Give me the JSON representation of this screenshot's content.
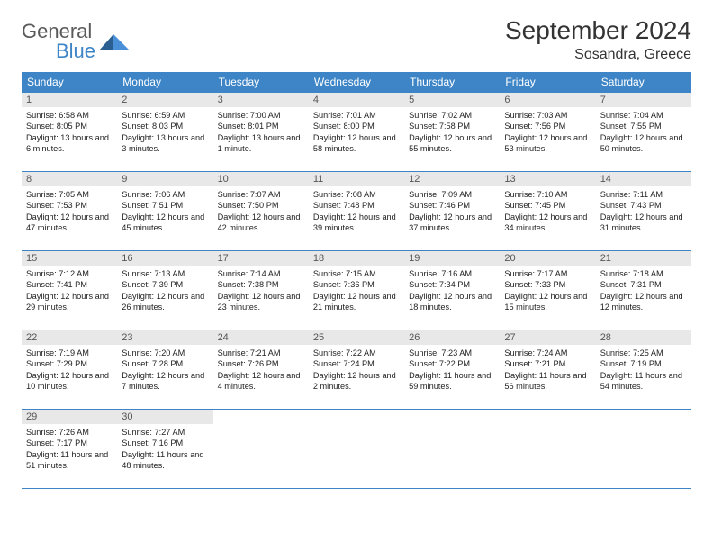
{
  "brand": {
    "general": "General",
    "blue": "Blue"
  },
  "header": {
    "month": "September 2024",
    "location": "Sosandra, Greece"
  },
  "colors": {
    "accent": "#3d85c6",
    "daynum_bg": "#e8e8e8",
    "text": "#222222",
    "bg": "#ffffff"
  },
  "weekdays": [
    "Sunday",
    "Monday",
    "Tuesday",
    "Wednesday",
    "Thursday",
    "Friday",
    "Saturday"
  ],
  "weeks": [
    [
      {
        "n": "1",
        "sr": "Sunrise: 6:58 AM",
        "ss": "Sunset: 8:05 PM",
        "dl": "Daylight: 13 hours and 6 minutes."
      },
      {
        "n": "2",
        "sr": "Sunrise: 6:59 AM",
        "ss": "Sunset: 8:03 PM",
        "dl": "Daylight: 13 hours and 3 minutes."
      },
      {
        "n": "3",
        "sr": "Sunrise: 7:00 AM",
        "ss": "Sunset: 8:01 PM",
        "dl": "Daylight: 13 hours and 1 minute."
      },
      {
        "n": "4",
        "sr": "Sunrise: 7:01 AM",
        "ss": "Sunset: 8:00 PM",
        "dl": "Daylight: 12 hours and 58 minutes."
      },
      {
        "n": "5",
        "sr": "Sunrise: 7:02 AM",
        "ss": "Sunset: 7:58 PM",
        "dl": "Daylight: 12 hours and 55 minutes."
      },
      {
        "n": "6",
        "sr": "Sunrise: 7:03 AM",
        "ss": "Sunset: 7:56 PM",
        "dl": "Daylight: 12 hours and 53 minutes."
      },
      {
        "n": "7",
        "sr": "Sunrise: 7:04 AM",
        "ss": "Sunset: 7:55 PM",
        "dl": "Daylight: 12 hours and 50 minutes."
      }
    ],
    [
      {
        "n": "8",
        "sr": "Sunrise: 7:05 AM",
        "ss": "Sunset: 7:53 PM",
        "dl": "Daylight: 12 hours and 47 minutes."
      },
      {
        "n": "9",
        "sr": "Sunrise: 7:06 AM",
        "ss": "Sunset: 7:51 PM",
        "dl": "Daylight: 12 hours and 45 minutes."
      },
      {
        "n": "10",
        "sr": "Sunrise: 7:07 AM",
        "ss": "Sunset: 7:50 PM",
        "dl": "Daylight: 12 hours and 42 minutes."
      },
      {
        "n": "11",
        "sr": "Sunrise: 7:08 AM",
        "ss": "Sunset: 7:48 PM",
        "dl": "Daylight: 12 hours and 39 minutes."
      },
      {
        "n": "12",
        "sr": "Sunrise: 7:09 AM",
        "ss": "Sunset: 7:46 PM",
        "dl": "Daylight: 12 hours and 37 minutes."
      },
      {
        "n": "13",
        "sr": "Sunrise: 7:10 AM",
        "ss": "Sunset: 7:45 PM",
        "dl": "Daylight: 12 hours and 34 minutes."
      },
      {
        "n": "14",
        "sr": "Sunrise: 7:11 AM",
        "ss": "Sunset: 7:43 PM",
        "dl": "Daylight: 12 hours and 31 minutes."
      }
    ],
    [
      {
        "n": "15",
        "sr": "Sunrise: 7:12 AM",
        "ss": "Sunset: 7:41 PM",
        "dl": "Daylight: 12 hours and 29 minutes."
      },
      {
        "n": "16",
        "sr": "Sunrise: 7:13 AM",
        "ss": "Sunset: 7:39 PM",
        "dl": "Daylight: 12 hours and 26 minutes."
      },
      {
        "n": "17",
        "sr": "Sunrise: 7:14 AM",
        "ss": "Sunset: 7:38 PM",
        "dl": "Daylight: 12 hours and 23 minutes."
      },
      {
        "n": "18",
        "sr": "Sunrise: 7:15 AM",
        "ss": "Sunset: 7:36 PM",
        "dl": "Daylight: 12 hours and 21 minutes."
      },
      {
        "n": "19",
        "sr": "Sunrise: 7:16 AM",
        "ss": "Sunset: 7:34 PM",
        "dl": "Daylight: 12 hours and 18 minutes."
      },
      {
        "n": "20",
        "sr": "Sunrise: 7:17 AM",
        "ss": "Sunset: 7:33 PM",
        "dl": "Daylight: 12 hours and 15 minutes."
      },
      {
        "n": "21",
        "sr": "Sunrise: 7:18 AM",
        "ss": "Sunset: 7:31 PM",
        "dl": "Daylight: 12 hours and 12 minutes."
      }
    ],
    [
      {
        "n": "22",
        "sr": "Sunrise: 7:19 AM",
        "ss": "Sunset: 7:29 PM",
        "dl": "Daylight: 12 hours and 10 minutes."
      },
      {
        "n": "23",
        "sr": "Sunrise: 7:20 AM",
        "ss": "Sunset: 7:28 PM",
        "dl": "Daylight: 12 hours and 7 minutes."
      },
      {
        "n": "24",
        "sr": "Sunrise: 7:21 AM",
        "ss": "Sunset: 7:26 PM",
        "dl": "Daylight: 12 hours and 4 minutes."
      },
      {
        "n": "25",
        "sr": "Sunrise: 7:22 AM",
        "ss": "Sunset: 7:24 PM",
        "dl": "Daylight: 12 hours and 2 minutes."
      },
      {
        "n": "26",
        "sr": "Sunrise: 7:23 AM",
        "ss": "Sunset: 7:22 PM",
        "dl": "Daylight: 11 hours and 59 minutes."
      },
      {
        "n": "27",
        "sr": "Sunrise: 7:24 AM",
        "ss": "Sunset: 7:21 PM",
        "dl": "Daylight: 11 hours and 56 minutes."
      },
      {
        "n": "28",
        "sr": "Sunrise: 7:25 AM",
        "ss": "Sunset: 7:19 PM",
        "dl": "Daylight: 11 hours and 54 minutes."
      }
    ],
    [
      {
        "n": "29",
        "sr": "Sunrise: 7:26 AM",
        "ss": "Sunset: 7:17 PM",
        "dl": "Daylight: 11 hours and 51 minutes."
      },
      {
        "n": "30",
        "sr": "Sunrise: 7:27 AM",
        "ss": "Sunset: 7:16 PM",
        "dl": "Daylight: 11 hours and 48 minutes."
      },
      null,
      null,
      null,
      null,
      null
    ]
  ]
}
